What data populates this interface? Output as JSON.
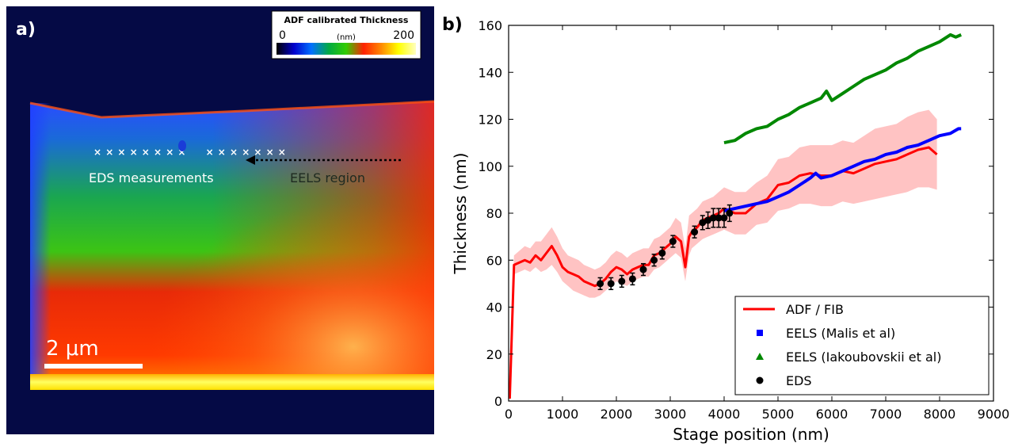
{
  "panel_a": {
    "label": "a)",
    "colorbar": {
      "title": "ADF calibrated Thickness",
      "min_label": "0",
      "unit_label": "(nm)",
      "max_label": "200",
      "stops": [
        "#000000",
        "#0000cc",
        "#0070ff",
        "#00aa44",
        "#33cc00",
        "#ff2200",
        "#ff8800",
        "#ffff00",
        "#ffffc0"
      ]
    },
    "eds_label": "EDS measurements",
    "eels_label": "EELS region",
    "scalebar_label": "2 μm"
  },
  "panel_b": {
    "label": "b)"
  },
  "chart_data": {
    "type": "line",
    "xlabel": "Stage position (nm)",
    "ylabel": "Thickness (nm)",
    "xlim": [
      0,
      9000
    ],
    "ylim": [
      0,
      160
    ],
    "xticks": [
      "0",
      "1000",
      "2000",
      "3000",
      "4000",
      "5000",
      "6000",
      "7000",
      "8000",
      "9000"
    ],
    "yticks": [
      "0",
      "20",
      "40",
      "60",
      "80",
      "100",
      "120",
      "140",
      "160"
    ],
    "legend_position": "bottom-right",
    "grid": false,
    "series": [
      {
        "name": "ADF / FIB",
        "color": "#ff0000",
        "x": [
          20,
          100,
          200,
          300,
          400,
          500,
          600,
          700,
          800,
          900,
          1000,
          1100,
          1200,
          1300,
          1400,
          1500,
          1600,
          1700,
          1800,
          1900,
          2000,
          2100,
          2200,
          2300,
          2400,
          2500,
          2600,
          2700,
          2800,
          2900,
          3000,
          3100,
          3200,
          3280,
          3350,
          3400,
          3500,
          3600,
          3700,
          3800,
          3900,
          4000,
          4200,
          4400,
          4600,
          4800,
          5000,
          5200,
          5400,
          5600,
          5800,
          6000,
          6200,
          6400,
          6600,
          6800,
          7000,
          7200,
          7400,
          7600,
          7800,
          7950
        ],
        "values": [
          1,
          58,
          59,
          60,
          59,
          62,
          60,
          63,
          66,
          62,
          57,
          55,
          54,
          53,
          51,
          50,
          49,
          50,
          52,
          55,
          57,
          56,
          54,
          56,
          57,
          58,
          58,
          62,
          63,
          65,
          67,
          70,
          68,
          57,
          70,
          72,
          74,
          77,
          78,
          79,
          80,
          82,
          80,
          80,
          84,
          86,
          92,
          93,
          96,
          97,
          96,
          96,
          98,
          97,
          99,
          101,
          102,
          103,
          105,
          107,
          108,
          105
        ],
        "band_lower": [
          0,
          54,
          55,
          56,
          55,
          57,
          55,
          56,
          58,
          55,
          51,
          49,
          47,
          46,
          45,
          44,
          44,
          45,
          47,
          49,
          51,
          50,
          49,
          51,
          52,
          53,
          53,
          56,
          57,
          59,
          61,
          63,
          61,
          51,
          62,
          65,
          67,
          69,
          70,
          71,
          72,
          73,
          71,
          71,
          75,
          76,
          81,
          82,
          84,
          84,
          83,
          83,
          85,
          84,
          85,
          86,
          87,
          88,
          89,
          91,
          91,
          90
        ],
        "band_upper": [
          2,
          62,
          64,
          66,
          65,
          68,
          68,
          71,
          74,
          70,
          65,
          62,
          61,
          60,
          58,
          57,
          56,
          57,
          59,
          62,
          64,
          63,
          61,
          63,
          64,
          65,
          65,
          69,
          70,
          72,
          74,
          78,
          76,
          65,
          79,
          80,
          82,
          85,
          86,
          87,
          89,
          91,
          89,
          89,
          93,
          96,
          103,
          104,
          108,
          109,
          109,
          109,
          111,
          110,
          113,
          116,
          117,
          118,
          121,
          123,
          124,
          120
        ]
      },
      {
        "name": "EELS (Malis et al)",
        "color": "#0000ff",
        "marker": "square",
        "x": [
          4000,
          4200,
          4400,
          4600,
          4800,
          5000,
          5200,
          5400,
          5600,
          5700,
          5800,
          6000,
          6200,
          6400,
          6600,
          6800,
          7000,
          7200,
          7400,
          7600,
          7800,
          8000,
          8200,
          8350,
          8400
        ],
        "values": [
          81,
          82,
          83,
          84,
          85,
          87,
          89,
          92,
          95,
          97,
          95,
          96,
          98,
          100,
          102,
          103,
          105,
          106,
          108,
          109,
          111,
          113,
          114,
          116,
          116
        ]
      },
      {
        "name": "EELS (Iakoubovskii et al)",
        "color": "#008800",
        "marker": "triangle",
        "x": [
          4000,
          4200,
          4400,
          4600,
          4800,
          5000,
          5200,
          5400,
          5600,
          5800,
          5900,
          6000,
          6200,
          6400,
          6600,
          6800,
          7000,
          7200,
          7400,
          7600,
          7800,
          8000,
          8200,
          8300,
          8400
        ],
        "values": [
          110,
          111,
          114,
          116,
          117,
          120,
          122,
          125,
          127,
          129,
          132,
          128,
          131,
          134,
          137,
          139,
          141,
          144,
          146,
          149,
          151,
          153,
          156,
          155,
          156
        ]
      },
      {
        "name": "EDS",
        "color": "#000000",
        "marker": "circle",
        "x": [
          1700,
          1900,
          2100,
          2300,
          2500,
          2700,
          2850,
          3050,
          3450,
          3600,
          3700,
          3800,
          3900,
          4000,
          4100
        ],
        "values": [
          50,
          50,
          51,
          52,
          56,
          60,
          63,
          68,
          72,
          76,
          77,
          78,
          78,
          78,
          80
        ],
        "errors": [
          2.5,
          2.5,
          2.5,
          2.5,
          2.5,
          2.5,
          2.5,
          2.5,
          2.5,
          3,
          3.5,
          4,
          4,
          4,
          3.5
        ]
      }
    ]
  }
}
